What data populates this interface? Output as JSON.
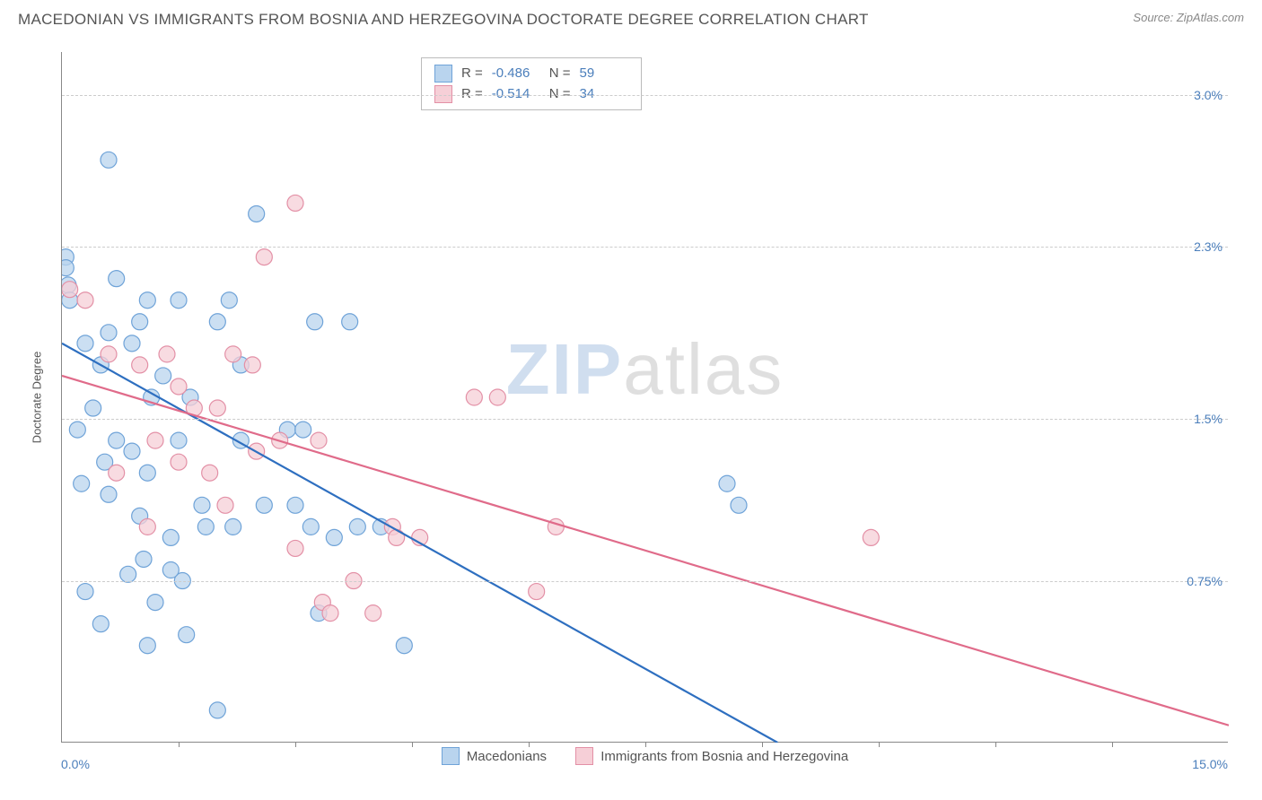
{
  "header": {
    "title": "MACEDONIAN VS IMMIGRANTS FROM BOSNIA AND HERZEGOVINA DOCTORATE DEGREE CORRELATION CHART",
    "source_label": "Source:",
    "source_name": "ZipAtlas.com"
  },
  "watermark": {
    "part1": "ZIP",
    "part2": "atlas"
  },
  "chart": {
    "type": "scatter",
    "ylabel": "Doctorate Degree",
    "xlim": [
      0.0,
      15.0
    ],
    "ylim": [
      0.0,
      3.2
    ],
    "x_tick_positions": [
      1.5,
      3.0,
      4.5,
      6.0,
      7.5,
      9.0,
      10.5,
      12.0,
      13.5
    ],
    "y_gridlines": [
      0.75,
      1.5,
      2.3,
      3.0
    ],
    "y_tick_labels": [
      "0.75%",
      "1.5%",
      "2.3%",
      "3.0%"
    ],
    "x_min_label": "0.0%",
    "x_max_label": "15.0%",
    "background_color": "#ffffff",
    "grid_color": "#cccccc",
    "axis_color": "#888888",
    "tick_label_color": "#4a7ebb",
    "axis_label_color": "#555555",
    "marker_radius": 9,
    "marker_stroke_width": 1.2,
    "line_width": 2.2,
    "series": [
      {
        "name": "Macedonians",
        "fill": "#b9d4ee",
        "stroke": "#6fa3d8",
        "line_color": "#2e6fc0",
        "R": "-0.486",
        "N": "59",
        "regression": {
          "x1": 0.0,
          "y1": 1.85,
          "x2": 9.2,
          "y2": 0.0
        },
        "points": [
          [
            0.05,
            2.25
          ],
          [
            0.05,
            2.2
          ],
          [
            0.08,
            2.12
          ],
          [
            0.1,
            2.05
          ],
          [
            0.6,
            2.7
          ],
          [
            0.7,
            2.15
          ],
          [
            1.1,
            2.05
          ],
          [
            1.5,
            2.05
          ],
          [
            0.3,
            1.85
          ],
          [
            0.6,
            1.9
          ],
          [
            0.5,
            1.75
          ],
          [
            1.0,
            1.95
          ],
          [
            1.3,
            1.7
          ],
          [
            1.65,
            1.6
          ],
          [
            2.15,
            2.05
          ],
          [
            2.0,
            1.95
          ],
          [
            2.3,
            1.75
          ],
          [
            2.5,
            2.45
          ],
          [
            3.25,
            1.95
          ],
          [
            3.7,
            1.95
          ],
          [
            2.9,
            1.45
          ],
          [
            3.1,
            1.45
          ],
          [
            0.2,
            1.45
          ],
          [
            0.55,
            1.3
          ],
          [
            0.7,
            1.4
          ],
          [
            0.9,
            1.35
          ],
          [
            1.15,
            1.6
          ],
          [
            1.5,
            1.4
          ],
          [
            0.25,
            1.2
          ],
          [
            0.6,
            1.15
          ],
          [
            1.0,
            1.05
          ],
          [
            1.1,
            1.25
          ],
          [
            1.4,
            0.95
          ],
          [
            1.55,
            0.75
          ],
          [
            0.3,
            0.7
          ],
          [
            0.5,
            0.55
          ],
          [
            0.85,
            0.78
          ],
          [
            1.05,
            0.85
          ],
          [
            1.2,
            0.65
          ],
          [
            1.4,
            0.8
          ],
          [
            1.8,
            1.1
          ],
          [
            1.85,
            1.0
          ],
          [
            2.2,
            1.0
          ],
          [
            2.6,
            1.1
          ],
          [
            2.3,
            1.4
          ],
          [
            3.0,
            1.1
          ],
          [
            3.2,
            1.0
          ],
          [
            3.5,
            0.95
          ],
          [
            3.8,
            1.0
          ],
          [
            4.1,
            1.0
          ],
          [
            3.3,
            0.6
          ],
          [
            4.4,
            0.45
          ],
          [
            2.0,
            0.15
          ],
          [
            1.6,
            0.5
          ],
          [
            1.1,
            0.45
          ],
          [
            8.55,
            1.2
          ],
          [
            8.7,
            1.1
          ],
          [
            0.4,
            1.55
          ],
          [
            0.9,
            1.85
          ]
        ]
      },
      {
        "name": "Immigrants from Bosnia and Herzegovina",
        "fill": "#f6cfd7",
        "stroke": "#e390a6",
        "line_color": "#e06b8a",
        "R": "-0.514",
        "N": "34",
        "regression": {
          "x1": 0.0,
          "y1": 1.7,
          "x2": 15.0,
          "y2": 0.08
        },
        "points": [
          [
            0.1,
            2.1
          ],
          [
            0.3,
            2.05
          ],
          [
            3.0,
            2.5
          ],
          [
            2.6,
            2.25
          ],
          [
            0.6,
            1.8
          ],
          [
            1.0,
            1.75
          ],
          [
            1.35,
            1.8
          ],
          [
            1.5,
            1.65
          ],
          [
            1.7,
            1.55
          ],
          [
            2.2,
            1.8
          ],
          [
            2.45,
            1.75
          ],
          [
            2.8,
            1.4
          ],
          [
            0.7,
            1.25
          ],
          [
            1.2,
            1.4
          ],
          [
            1.5,
            1.3
          ],
          [
            1.9,
            1.25
          ],
          [
            2.0,
            1.55
          ],
          [
            2.1,
            1.1
          ],
          [
            2.5,
            1.35
          ],
          [
            3.3,
            1.4
          ],
          [
            3.35,
            0.65
          ],
          [
            3.45,
            0.6
          ],
          [
            3.75,
            0.75
          ],
          [
            4.0,
            0.6
          ],
          [
            4.25,
            1.0
          ],
          [
            4.3,
            0.95
          ],
          [
            4.6,
            0.95
          ],
          [
            5.3,
            1.6
          ],
          [
            5.6,
            1.6
          ],
          [
            6.1,
            0.7
          ],
          [
            6.35,
            1.0
          ],
          [
            10.4,
            0.95
          ],
          [
            3.0,
            0.9
          ],
          [
            1.1,
            1.0
          ]
        ]
      }
    ],
    "top_panel_labels": {
      "R": "R =",
      "N": "N ="
    },
    "bottom_legend_labels": [
      "Macedonians",
      "Immigrants from Bosnia and Herzegovina"
    ]
  }
}
